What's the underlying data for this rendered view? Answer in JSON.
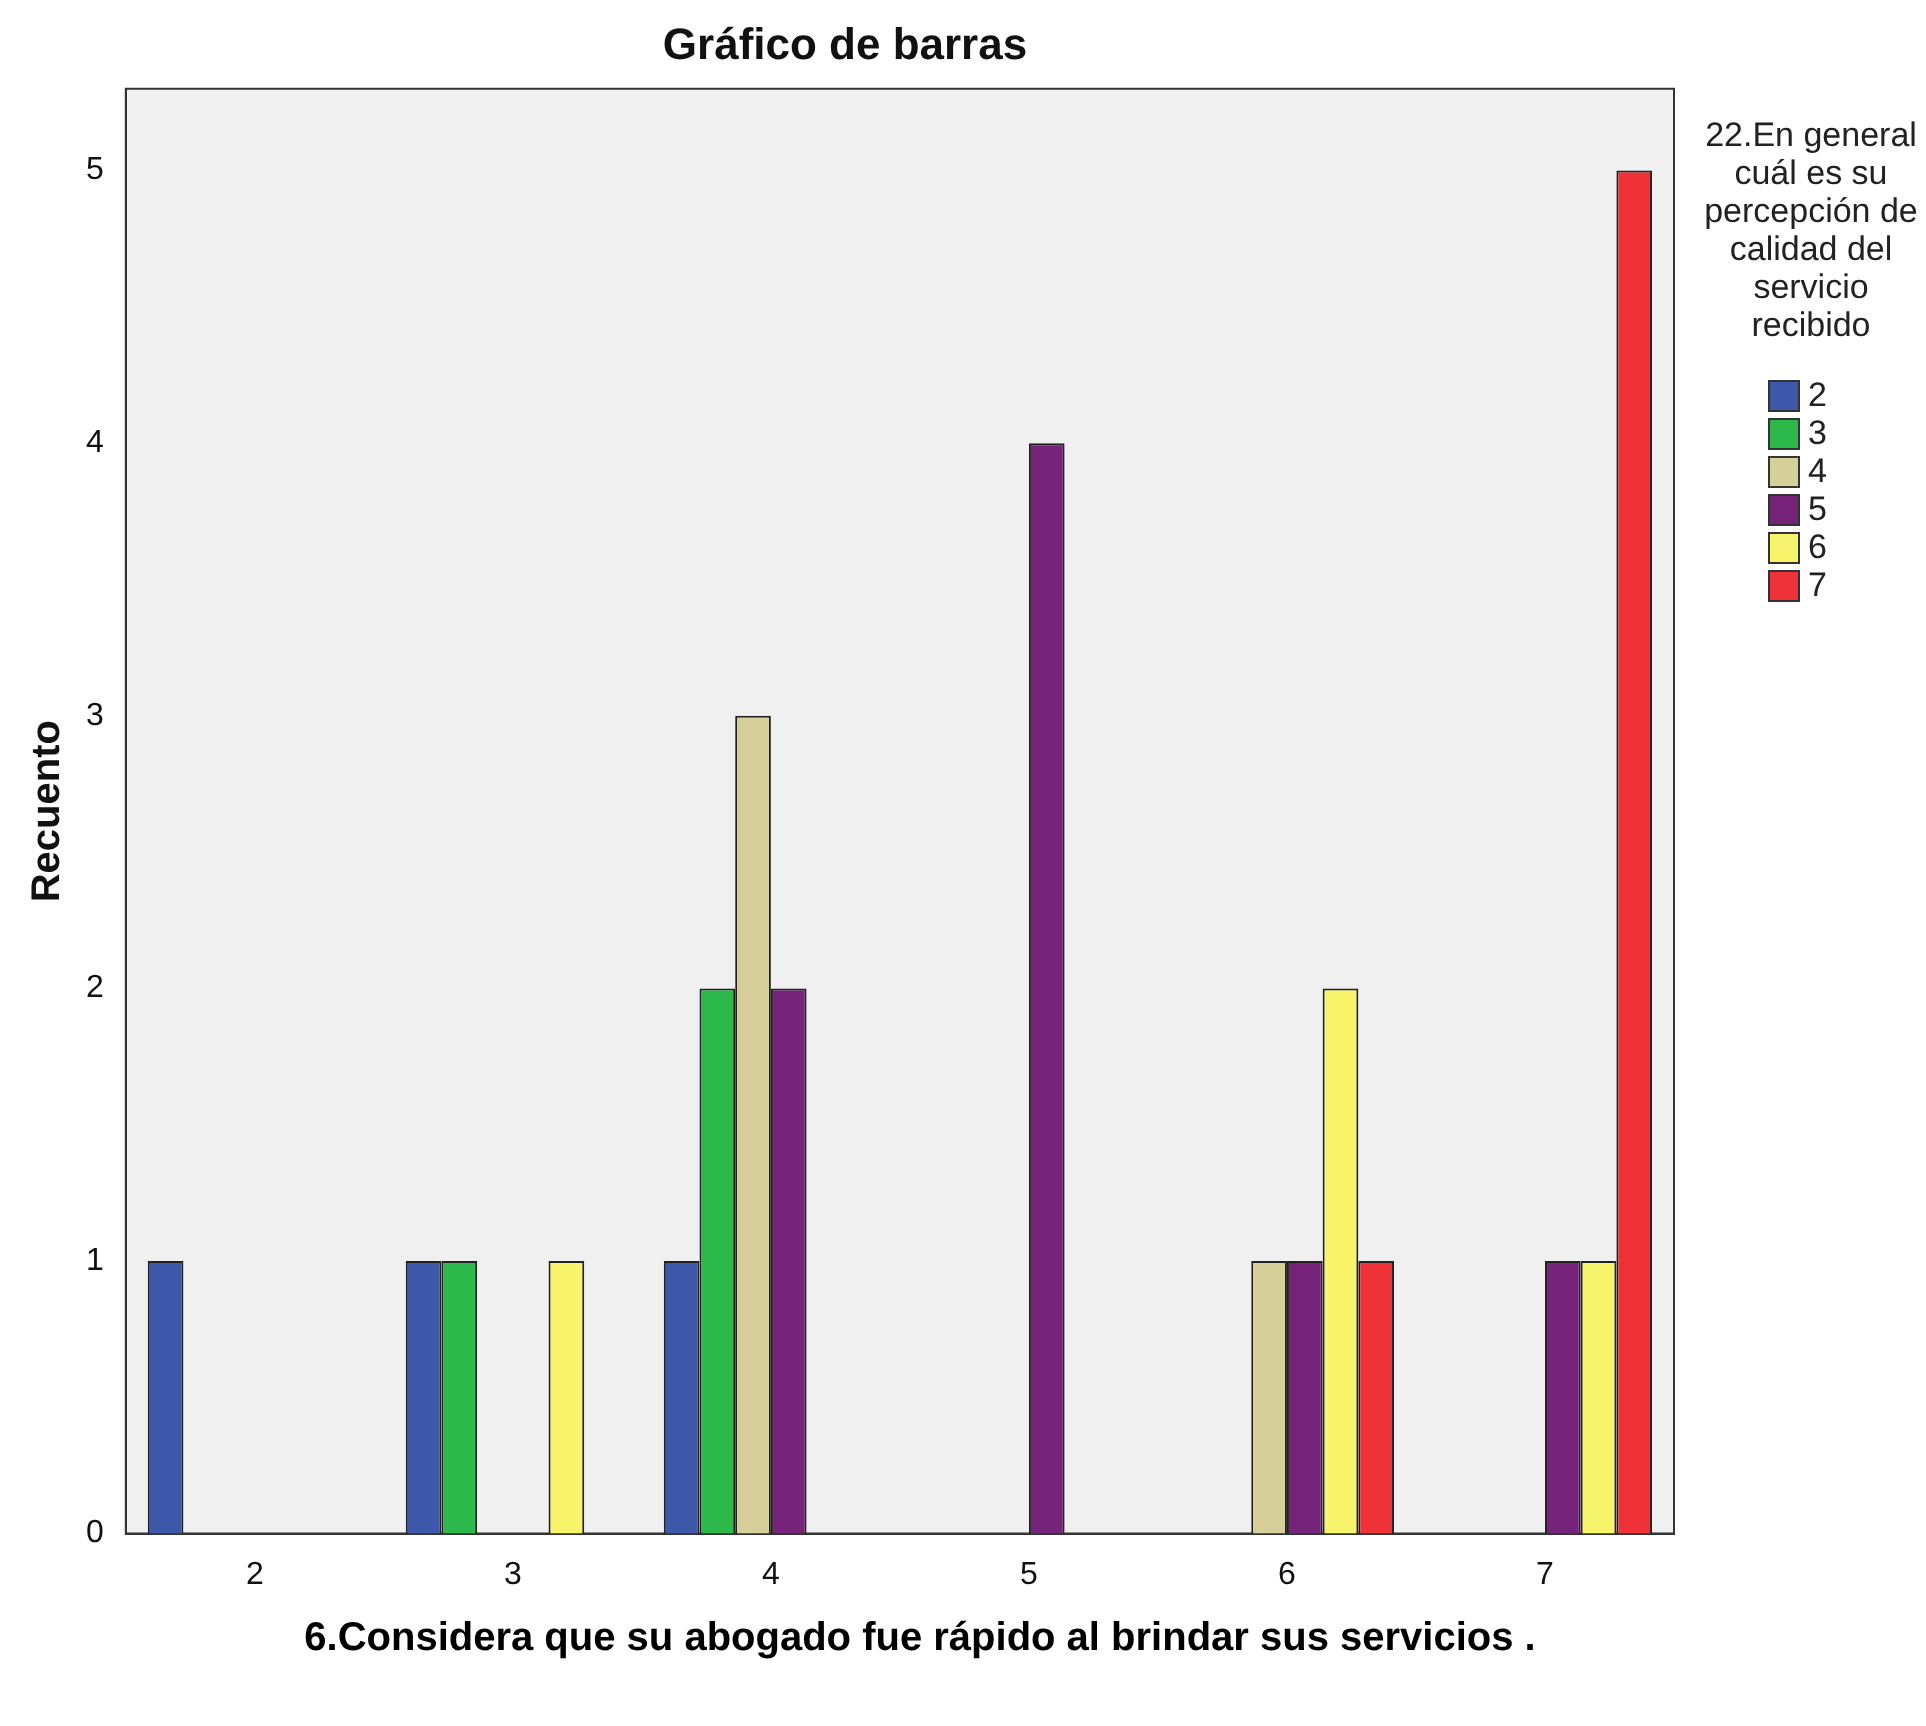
{
  "chart_data": {
    "type": "bar",
    "title": "Gráfico de barras",
    "xlabel": "6.Considera que su abogado fue rápido al brindar sus servicios .",
    "ylabel": "Recuento",
    "legend_title": "22.En general cuál es su percepción de calidad del servicio recibido",
    "categories": [
      "2",
      "3",
      "4",
      "5",
      "6",
      "7"
    ],
    "series": [
      {
        "name": "2",
        "color": "#3d58a8",
        "values": [
          1,
          1,
          1,
          0,
          0,
          0
        ]
      },
      {
        "name": "3",
        "color": "#2db84b",
        "values": [
          0,
          1,
          2,
          0,
          0,
          0
        ]
      },
      {
        "name": "4",
        "color": "#d6cf9a",
        "values": [
          0,
          0,
          3,
          0,
          1,
          0
        ]
      },
      {
        "name": "5",
        "color": "#76237a",
        "values": [
          0,
          0,
          2,
          4,
          1,
          1
        ]
      },
      {
        "name": "6",
        "color": "#f8f56c",
        "values": [
          0,
          1,
          0,
          0,
          2,
          1
        ]
      },
      {
        "name": "7",
        "color": "#ee3238",
        "values": [
          0,
          0,
          0,
          0,
          1,
          5
        ]
      }
    ],
    "ylim": [
      0,
      5.3
    ],
    "yticks": [
      0,
      1,
      2,
      3,
      4,
      5
    ],
    "grid": false,
    "legend": "right"
  }
}
